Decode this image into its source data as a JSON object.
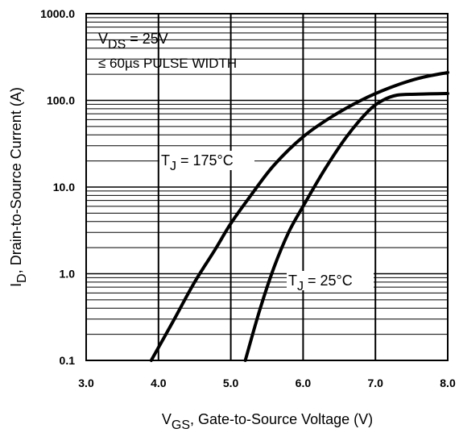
{
  "chart_data": {
    "type": "line",
    "xlabel_main": "V",
    "xlabel_sub": "GS",
    "xlabel_rest": ", Gate-to-Source Voltage (V)",
    "ylabel_main": "I",
    "ylabel_sub": "D",
    "ylabel_rest": ", Drain-to-Source Current (A)",
    "xlim": [
      3.0,
      8.0
    ],
    "ylim": [
      0.1,
      1000.0
    ],
    "y_scale": "log",
    "x_ticks": [
      "3.0",
      "4.0",
      "5.0",
      "6.0",
      "7.0",
      "8.0"
    ],
    "y_ticks": [
      "0.1",
      "1.0",
      "10.0",
      "100.0",
      "1000.0"
    ],
    "grid": true,
    "conditions": {
      "vds_main": "V",
      "vds_sub": "DS",
      "vds_rest": " = 25V",
      "pulse": "≤ 60µs PULSE WIDTH"
    },
    "series": [
      {
        "name_main": "T",
        "name_sub": "J",
        "name_rest": " = 175°C",
        "x": [
          3.9,
          4.2,
          4.5,
          4.8,
          5.0,
          5.3,
          5.6,
          6.0,
          6.4,
          6.8,
          7.2,
          7.6,
          8.0
        ],
        "y": [
          0.1,
          0.28,
          0.8,
          2.0,
          3.8,
          8.5,
          18,
          38,
          65,
          100,
          140,
          180,
          210
        ]
      },
      {
        "name_main": "T",
        "name_sub": "J",
        "name_rest": " = 25°C",
        "x": [
          5.2,
          5.4,
          5.6,
          5.8,
          6.0,
          6.3,
          6.6,
          6.9,
          7.1,
          7.3,
          7.6,
          8.0
        ],
        "y": [
          0.1,
          0.38,
          1.2,
          3.0,
          6.0,
          16,
          38,
          75,
          100,
          115,
          118,
          120
        ]
      }
    ]
  }
}
